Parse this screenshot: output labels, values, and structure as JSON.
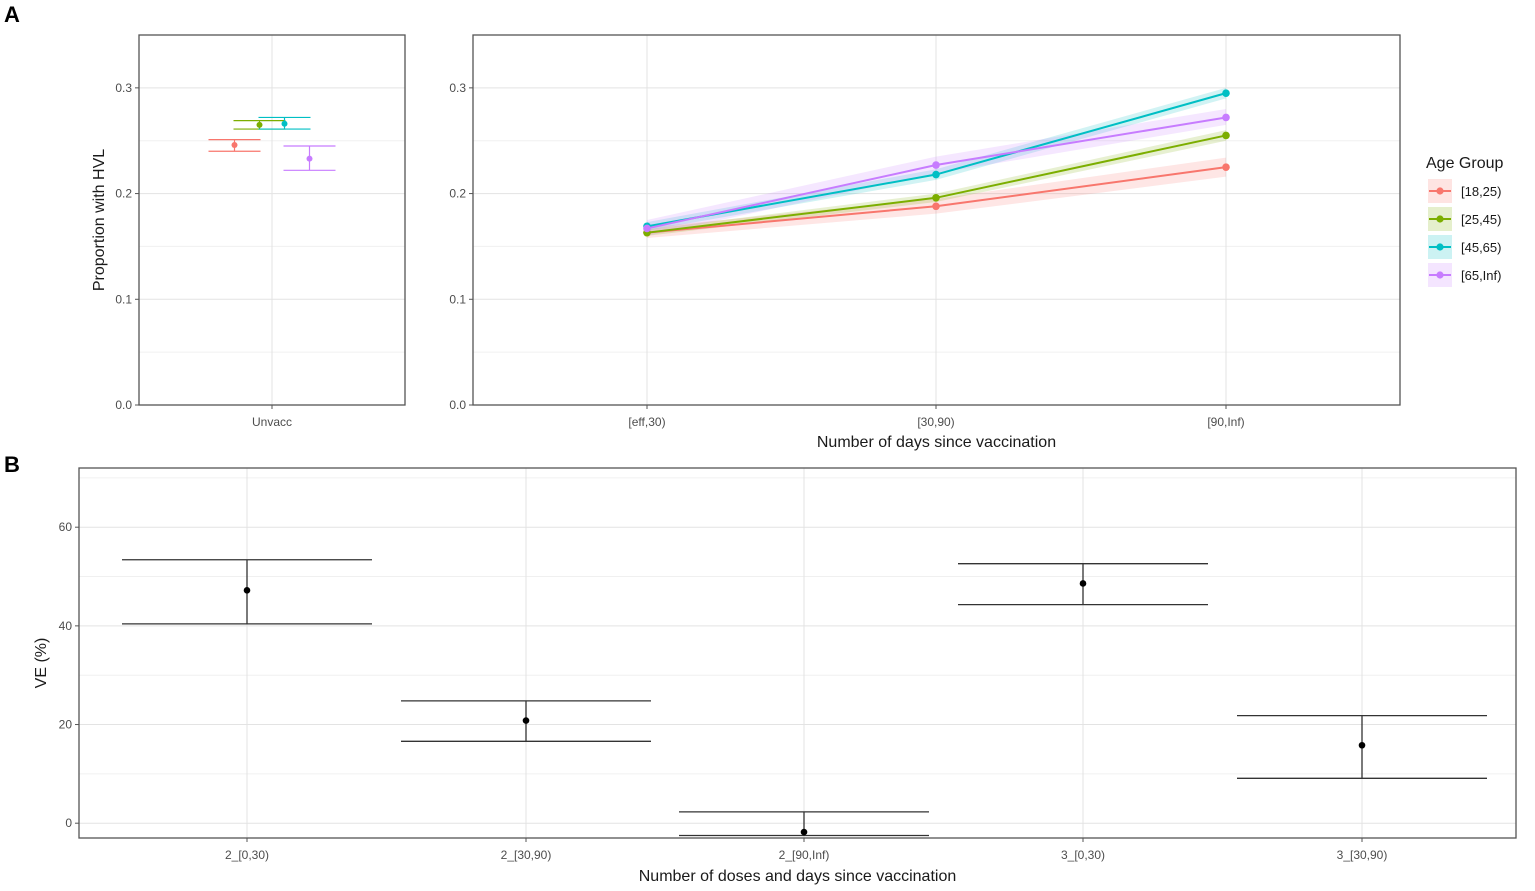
{
  "panels": {
    "a_label": "A",
    "b_label": "B"
  },
  "chart_data": [
    {
      "id": "A-left",
      "type": "scatter",
      "categories": [
        "Unvacc"
      ],
      "ylabel": "Proportion with HVL",
      "xlabel": "",
      "ylim": [
        0.0,
        0.35
      ],
      "yticks": [
        "0.0",
        "0.1",
        "0.2",
        "0.3"
      ],
      "grid": true,
      "series": [
        {
          "name": "[18,25)",
          "color": "#F8766D",
          "values": [
            0.246
          ],
          "lower": [
            0.24
          ],
          "upper": [
            0.251
          ]
        },
        {
          "name": "[25,45)",
          "color": "#7CAE00",
          "values": [
            0.265
          ],
          "lower": [
            0.261
          ],
          "upper": [
            0.269
          ]
        },
        {
          "name": "[45,65)",
          "color": "#00BFC4",
          "values": [
            0.266
          ],
          "lower": [
            0.261
          ],
          "upper": [
            0.272
          ]
        },
        {
          "name": "[65,Inf)",
          "color": "#C77CFF",
          "values": [
            0.233
          ],
          "lower": [
            0.222
          ],
          "upper": [
            0.245
          ]
        }
      ]
    },
    {
      "id": "A-right",
      "type": "line",
      "categories": [
        "[eff,30)",
        "[30,90)",
        "[90,Inf)"
      ],
      "xlabel": "Number of days since vaccination",
      "ylabel": "",
      "ylim": [
        0.0,
        0.35
      ],
      "yticks": [
        "0.0",
        "0.1",
        "0.2",
        "0.3"
      ],
      "grid": true,
      "legend": {
        "title": "Age Group",
        "placement": "right"
      },
      "series": [
        {
          "name": "[18,25)",
          "color": "#F8766D",
          "values": [
            0.163,
            0.188,
            0.225
          ],
          "lower": [
            0.158,
            0.181,
            0.216
          ],
          "upper": [
            0.168,
            0.195,
            0.234
          ]
        },
        {
          "name": "[25,45)",
          "color": "#7CAE00",
          "values": [
            0.163,
            0.196,
            0.255
          ],
          "lower": [
            0.16,
            0.192,
            0.25
          ],
          "upper": [
            0.166,
            0.2,
            0.26
          ]
        },
        {
          "name": "[45,65)",
          "color": "#00BFC4",
          "values": [
            0.169,
            0.218,
            0.295
          ],
          "lower": [
            0.165,
            0.213,
            0.29
          ],
          "upper": [
            0.173,
            0.223,
            0.3
          ]
        },
        {
          "name": "[65,Inf)",
          "color": "#C77CFF",
          "values": [
            0.167,
            0.227,
            0.272
          ],
          "lower": [
            0.16,
            0.219,
            0.265
          ],
          "upper": [
            0.175,
            0.235,
            0.28
          ]
        }
      ]
    },
    {
      "id": "B",
      "type": "scatter",
      "categories": [
        "2_[0,30)",
        "2_[30,90)",
        "2_[90,Inf)",
        "3_[0,30)",
        "3_[30,90)"
      ],
      "xlabel": "Number of doses and days since vaccination",
      "ylabel": "VE (%)",
      "ylim": [
        -3,
        72
      ],
      "yticks": [
        "0",
        "20",
        "40",
        "60"
      ],
      "grid": true,
      "series": [
        {
          "name": "",
          "color": "#000000",
          "values": [
            47.2,
            20.8,
            -1.8,
            48.6,
            15.8
          ],
          "lower": [
            40.4,
            16.6,
            -2.5,
            44.3,
            9.1
          ],
          "upper": [
            53.4,
            24.8,
            2.3,
            52.6,
            21.8
          ]
        }
      ]
    }
  ]
}
